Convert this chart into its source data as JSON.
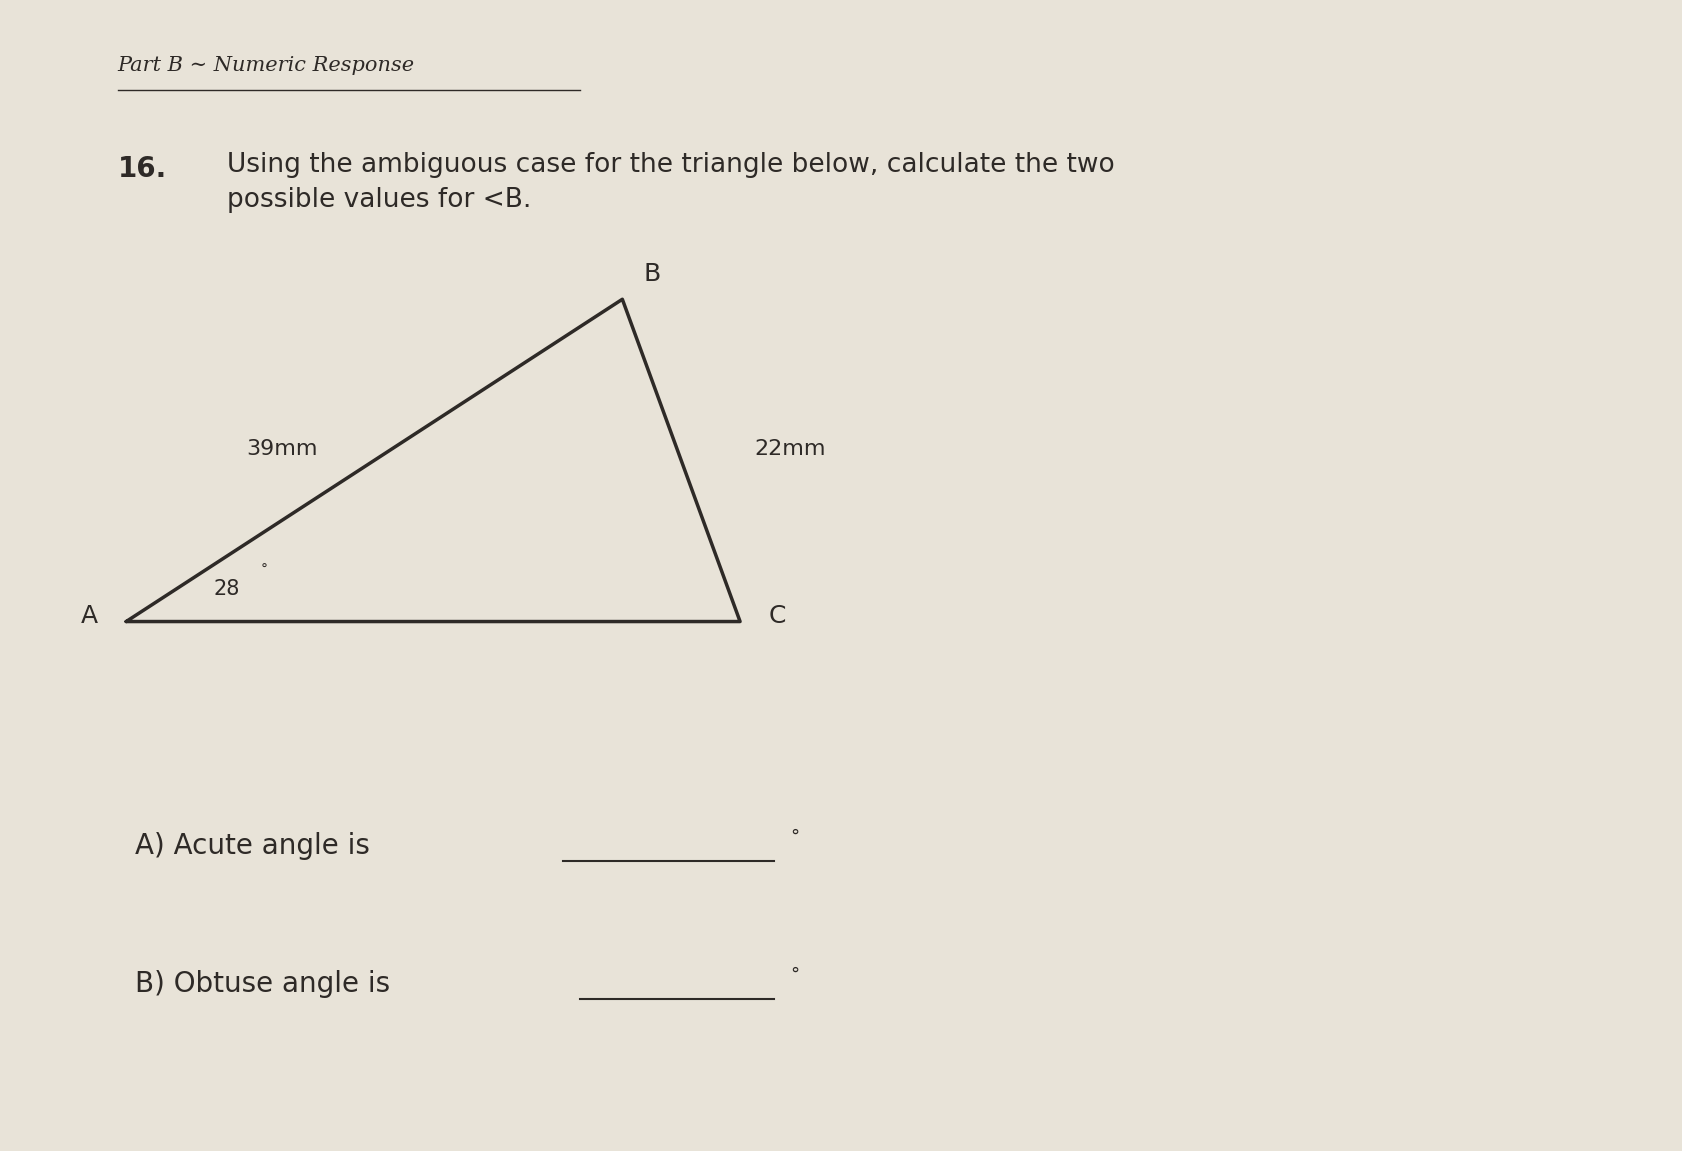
{
  "bg_color": "#e8e3d8",
  "title_part_b": "Part B ∼ Numeric Response",
  "question_number": "16.",
  "question_text": "Using the ambiguous case for the triangle below, calculate the two\npossible values for <B.",
  "label_A": "A",
  "label_B": "B",
  "label_C": "C",
  "side_AB_label": "39mm",
  "side_BC_label": "22mm",
  "angle_A_label": "28",
  "answer_a_text": "A) Acute angle is",
  "answer_b_text": "B) Obtuse angle is",
  "degree_symbol": "°",
  "text_color": "#2e2a27",
  "line_color": "#2e2a27",
  "tri_A": [
    0.075,
    0.46
  ],
  "tri_B": [
    0.37,
    0.74
  ],
  "tri_C": [
    0.44,
    0.46
  ]
}
